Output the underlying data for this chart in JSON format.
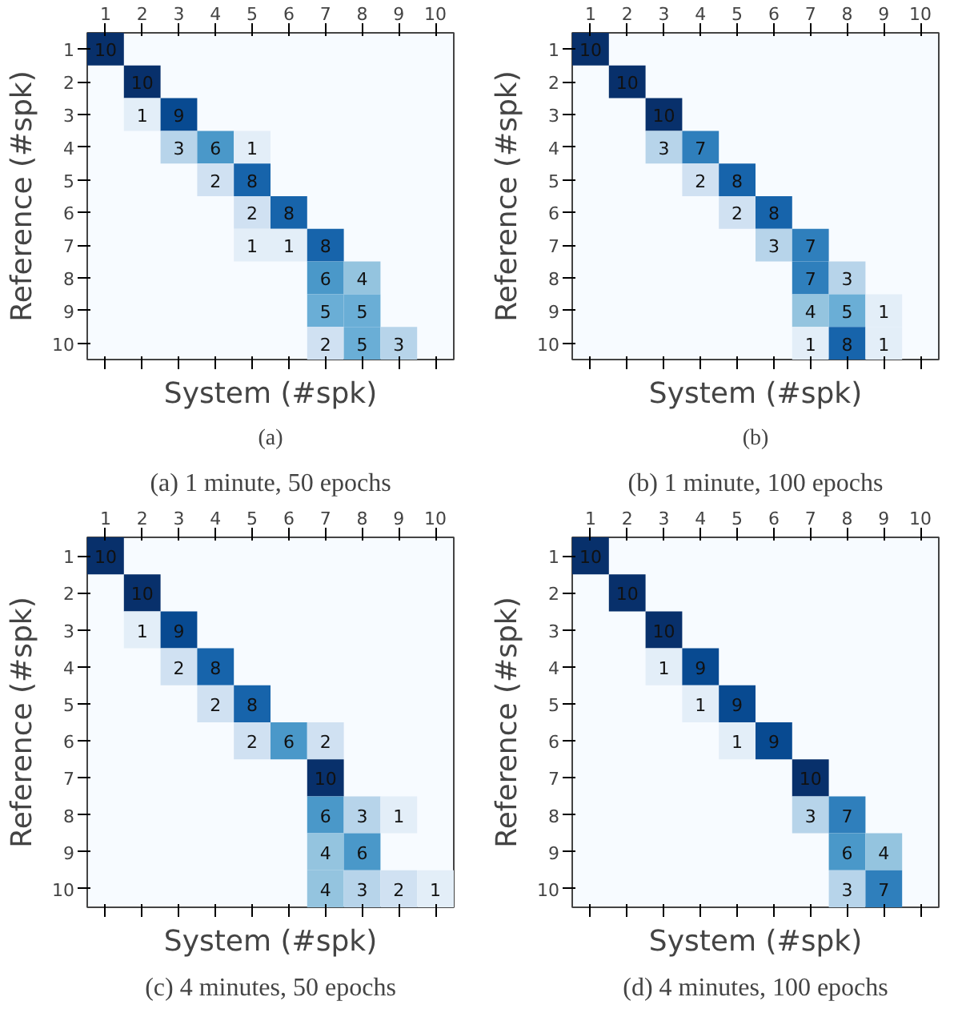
{
  "chart_data": [
    {
      "type": "heatmap",
      "data_labels": true,
      "title": "(a) 1 minute, 50 epochs",
      "xlabel": "System (#spk)",
      "ylabel": "Reference (#spk)",
      "annotations": [
        "(a)"
      ],
      "categories": [
        "1",
        "2",
        "3",
        "4",
        "5",
        "6",
        "7",
        "8",
        "9",
        "10"
      ],
      "y_categories": [
        "1",
        "2",
        "3",
        "4",
        "5",
        "6",
        "7",
        "8",
        "9",
        "10"
      ],
      "cells": [
        [
          10,
          null,
          null,
          null,
          null,
          null,
          null,
          null,
          null,
          null
        ],
        [
          null,
          10,
          null,
          null,
          null,
          null,
          null,
          null,
          null,
          null
        ],
        [
          null,
          1,
          9,
          null,
          null,
          null,
          null,
          null,
          null,
          null
        ],
        [
          null,
          null,
          3,
          6,
          1,
          null,
          null,
          null,
          null,
          null
        ],
        [
          null,
          null,
          null,
          2,
          8,
          null,
          null,
          null,
          null,
          null
        ],
        [
          null,
          null,
          null,
          null,
          2,
          8,
          null,
          null,
          null,
          null
        ],
        [
          null,
          null,
          null,
          null,
          1,
          1,
          8,
          null,
          null,
          null
        ],
        [
          null,
          null,
          null,
          null,
          null,
          null,
          6,
          4,
          null,
          null
        ],
        [
          null,
          null,
          null,
          null,
          null,
          null,
          5,
          5,
          null,
          null
        ],
        [
          null,
          null,
          null,
          null,
          null,
          null,
          2,
          5,
          3,
          null
        ]
      ]
    },
    {
      "type": "heatmap",
      "data_labels": true,
      "title": "(b) 1 minute, 100 epochs",
      "xlabel": "System (#spk)",
      "ylabel": "Reference (#spk)",
      "annotations": [
        "(b)"
      ],
      "categories": [
        "1",
        "2",
        "3",
        "4",
        "5",
        "6",
        "7",
        "8",
        "9",
        "10"
      ],
      "y_categories": [
        "1",
        "2",
        "3",
        "4",
        "5",
        "6",
        "7",
        "8",
        "9",
        "10"
      ],
      "cells": [
        [
          10,
          null,
          null,
          null,
          null,
          null,
          null,
          null,
          null,
          null
        ],
        [
          null,
          10,
          null,
          null,
          null,
          null,
          null,
          null,
          null,
          null
        ],
        [
          null,
          null,
          10,
          null,
          null,
          null,
          null,
          null,
          null,
          null
        ],
        [
          null,
          null,
          3,
          7,
          null,
          null,
          null,
          null,
          null,
          null
        ],
        [
          null,
          null,
          null,
          2,
          8,
          null,
          null,
          null,
          null,
          null
        ],
        [
          null,
          null,
          null,
          null,
          2,
          8,
          null,
          null,
          null,
          null
        ],
        [
          null,
          null,
          null,
          null,
          null,
          3,
          7,
          null,
          null,
          null
        ],
        [
          null,
          null,
          null,
          null,
          null,
          null,
          7,
          3,
          null,
          null
        ],
        [
          null,
          null,
          null,
          null,
          null,
          null,
          4,
          5,
          1,
          null
        ],
        [
          null,
          null,
          null,
          null,
          null,
          null,
          1,
          8,
          1,
          null
        ]
      ]
    },
    {
      "type": "heatmap",
      "data_labels": true,
      "title": "(c) 4 minutes, 50 epochs",
      "xlabel": "System (#spk)",
      "ylabel": "Reference (#spk)",
      "categories": [
        "1",
        "2",
        "3",
        "4",
        "5",
        "6",
        "7",
        "8",
        "9",
        "10"
      ],
      "y_categories": [
        "1",
        "2",
        "3",
        "4",
        "5",
        "6",
        "7",
        "8",
        "9",
        "10"
      ],
      "cells": [
        [
          10,
          null,
          null,
          null,
          null,
          null,
          null,
          null,
          null,
          null
        ],
        [
          null,
          10,
          null,
          null,
          null,
          null,
          null,
          null,
          null,
          null
        ],
        [
          null,
          1,
          9,
          null,
          null,
          null,
          null,
          null,
          null,
          null
        ],
        [
          null,
          null,
          2,
          8,
          null,
          null,
          null,
          null,
          null,
          null
        ],
        [
          null,
          null,
          null,
          2,
          8,
          null,
          null,
          null,
          null,
          null
        ],
        [
          null,
          null,
          null,
          null,
          2,
          6,
          2,
          null,
          null,
          null
        ],
        [
          null,
          null,
          null,
          null,
          null,
          null,
          10,
          null,
          null,
          null
        ],
        [
          null,
          null,
          null,
          null,
          null,
          null,
          6,
          3,
          1,
          null
        ],
        [
          null,
          null,
          null,
          null,
          null,
          null,
          4,
          6,
          null,
          null
        ],
        [
          null,
          null,
          null,
          null,
          null,
          null,
          4,
          3,
          2,
          1
        ]
      ]
    },
    {
      "type": "heatmap",
      "data_labels": true,
      "title": "(d) 4 minutes, 100 epochs",
      "xlabel": "System (#spk)",
      "ylabel": "Reference (#spk)",
      "categories": [
        "1",
        "2",
        "3",
        "4",
        "5",
        "6",
        "7",
        "8",
        "9",
        "10"
      ],
      "y_categories": [
        "1",
        "2",
        "3",
        "4",
        "5",
        "6",
        "7",
        "8",
        "9",
        "10"
      ],
      "cells": [
        [
          10,
          null,
          null,
          null,
          null,
          null,
          null,
          null,
          null,
          null
        ],
        [
          null,
          10,
          null,
          null,
          null,
          null,
          null,
          null,
          null,
          null
        ],
        [
          null,
          null,
          10,
          null,
          null,
          null,
          null,
          null,
          null,
          null
        ],
        [
          null,
          null,
          1,
          9,
          null,
          null,
          null,
          null,
          null,
          null
        ],
        [
          null,
          null,
          null,
          1,
          9,
          null,
          null,
          null,
          null,
          null
        ],
        [
          null,
          null,
          null,
          null,
          1,
          9,
          null,
          null,
          null,
          null
        ],
        [
          null,
          null,
          null,
          null,
          null,
          null,
          10,
          null,
          null,
          null
        ],
        [
          null,
          null,
          null,
          null,
          null,
          null,
          3,
          7,
          null,
          null
        ],
        [
          null,
          null,
          null,
          null,
          null,
          null,
          null,
          6,
          4,
          null
        ],
        [
          null,
          null,
          null,
          null,
          null,
          null,
          null,
          3,
          7,
          null
        ]
      ]
    }
  ]
}
